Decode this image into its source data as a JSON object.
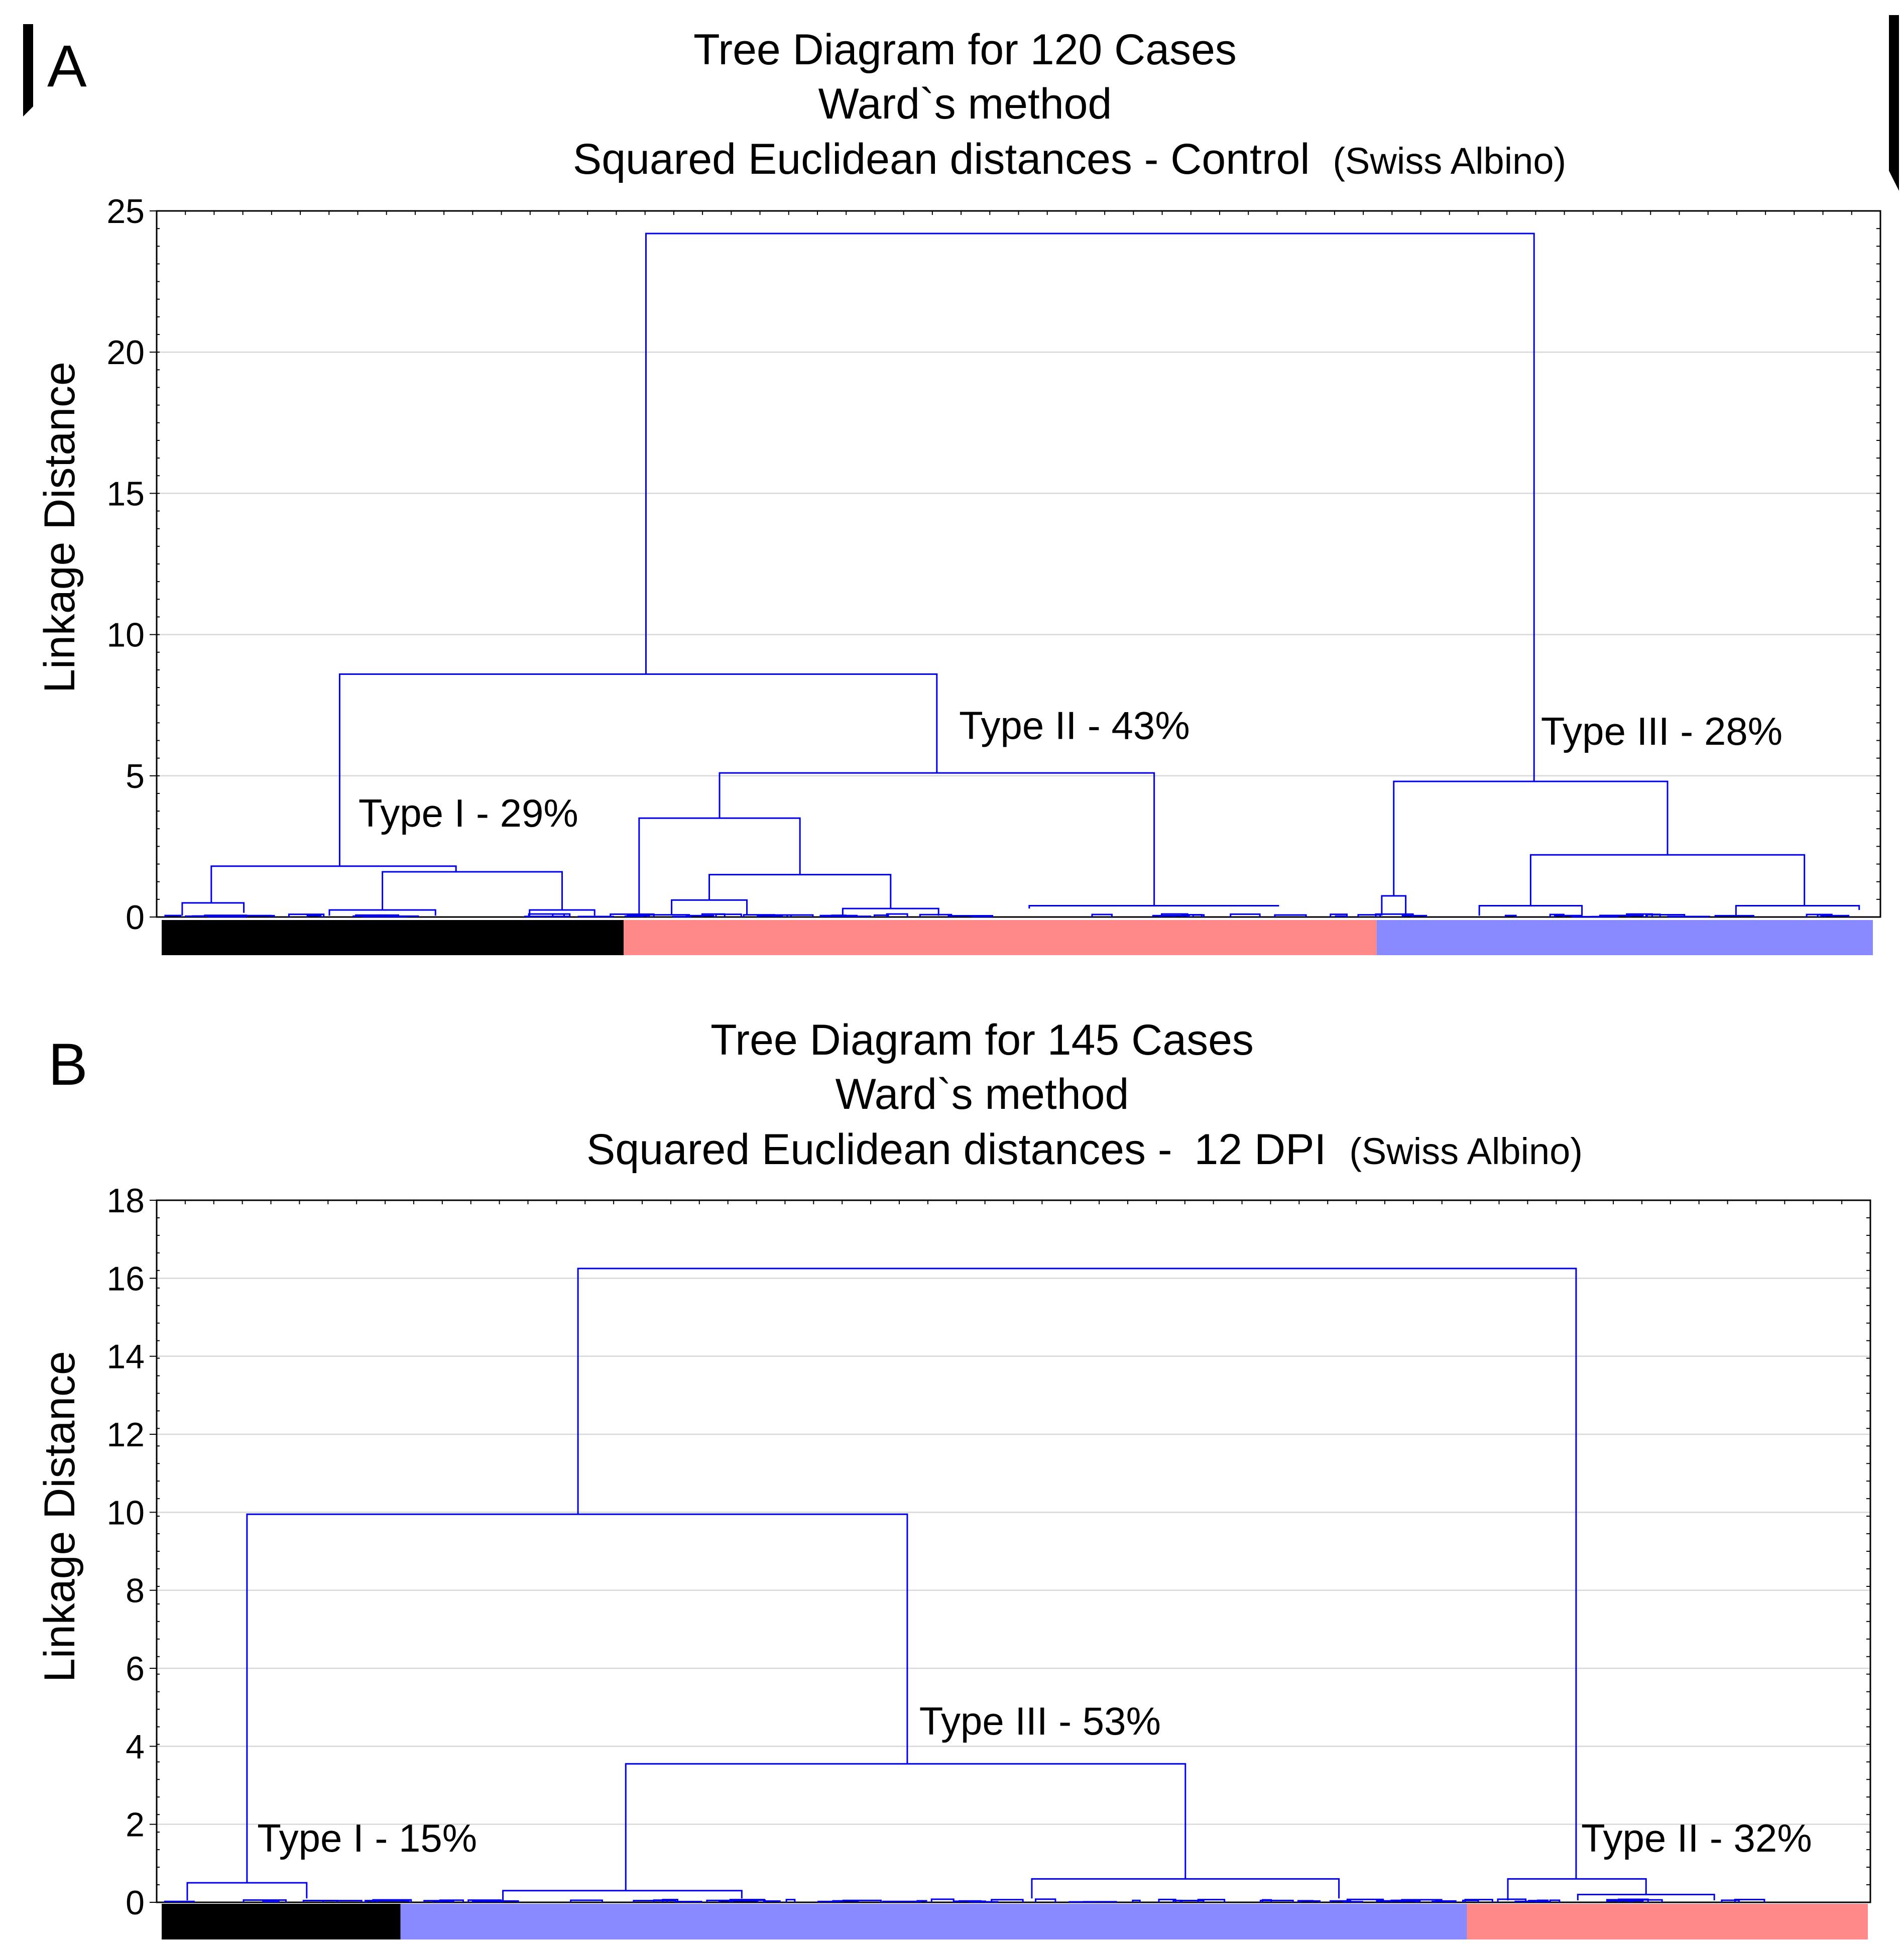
{
  "chart_data": [
    {
      "type": "dendrogram",
      "panel_label": "A",
      "title_lines": [
        "Tree Diagram for 120 Cases",
        "Ward`s method",
        "Squared Euclidean distances - Control"
      ],
      "title_suffix": "(Swiss Albino)",
      "ylabel": "Linkage Distance",
      "ylim": [
        0,
        25
      ],
      "yticks": [
        0,
        5,
        10,
        15,
        20,
        25
      ],
      "grid": true,
      "x_range": [
        0,
        100
      ],
      "colors": {
        "line": "#0000ee",
        "black": "#000000",
        "pink": "#ff8888",
        "blue": "#8888ff"
      },
      "cluster_bar": [
        {
          "cluster": "Type I",
          "color": "#000000",
          "start": 0,
          "end": 27
        },
        {
          "cluster": "Type II",
          "color": "#ff8888",
          "start": 27,
          "end": 71
        },
        {
          "cluster": "Type III",
          "color": "#8888ff",
          "start": 71,
          "end": 100
        }
      ],
      "annotations": [
        {
          "text": "Type I - 29%",
          "x": 11.5,
          "y": 3.2
        },
        {
          "text": "Type II - 43%",
          "x": 46.6,
          "y": 6.3
        },
        {
          "text": "Type III - 28%",
          "x": 80.6,
          "y": 6.1
        }
      ],
      "merges": [
        {
          "x1": 28.3,
          "h1": 8.6,
          "x2": 80.2,
          "h2": 4.8,
          "h": 24.2
        },
        {
          "x1": 10.4,
          "h1": 1.8,
          "x2": 45.3,
          "h2": 5.1,
          "h": 8.6
        },
        {
          "x1": 2.9,
          "h1": 0.5,
          "x2": 17.2,
          "h2": 1.6,
          "h": 1.8
        },
        {
          "x1": 12.9,
          "h1": 0.25,
          "x2": 23.4,
          "h2": 0.25,
          "h": 1.6
        },
        {
          "x1": 1.2,
          "h1": 0.05,
          "x2": 4.8,
          "h2": 0.15,
          "h": 0.5
        },
        {
          "x1": 9.8,
          "h1": 0.05,
          "x2": 16.0,
          "h2": 0.05,
          "h": 0.25
        },
        {
          "x1": 21.5,
          "h1": 0.05,
          "x2": 25.3,
          "h2": 0.05,
          "h": 0.25
        },
        {
          "x1": 32.6,
          "h1": 3.5,
          "x2": 58.0,
          "h2": 0.4,
          "h": 5.1
        },
        {
          "x1": 27.9,
          "h1": 0.1,
          "x2": 37.3,
          "h2": 1.5,
          "h": 3.5
        },
        {
          "x1": 32.0,
          "h1": 0.6,
          "x2": 42.6,
          "h2": 0.3,
          "h": 1.5
        },
        {
          "x1": 29.8,
          "h1": 0.1,
          "x2": 34.2,
          "h2": 0.1,
          "h": 0.6
        },
        {
          "x1": 39.8,
          "h1": 0.05,
          "x2": 45.4,
          "h2": 0.05,
          "h": 0.3
        },
        {
          "x1": 50.7,
          "h1": 0.3,
          "x2": 65.3,
          "h2": 0.4,
          "h": 0.4
        },
        {
          "x1": 72.0,
          "h1": 0.75,
          "x2": 88.0,
          "h2": 2.2,
          "h": 4.8
        },
        {
          "x1": 71.3,
          "h1": 0.05,
          "x2": 72.7,
          "h2": 0.05,
          "h": 0.75
        },
        {
          "x1": 80.0,
          "h1": 0.4,
          "x2": 96.0,
          "h2": 0.4,
          "h": 2.2
        },
        {
          "x1": 77.0,
          "h1": 0.05,
          "x2": 83.0,
          "h2": 0.05,
          "h": 0.4
        },
        {
          "x1": 92.0,
          "h1": 0.05,
          "x2": 99.2,
          "h2": 0.25,
          "h": 0.4
        }
      ]
    },
    {
      "type": "dendrogram",
      "panel_label": "B",
      "title_lines": [
        "Tree Diagram for 145 Cases",
        "Ward`s method",
        "Squared Euclidean distances -"
      ],
      "title_tail": "12 DPI",
      "title_suffix": "(Swiss Albino)",
      "ylabel": "Linkage Distance",
      "ylim": [
        0,
        18
      ],
      "yticks": [
        0,
        2,
        4,
        6,
        8,
        10,
        12,
        14,
        16,
        18
      ],
      "grid": true,
      "x_range": [
        0,
        100
      ],
      "colors": {
        "line": "#0000ee",
        "black": "#000000",
        "pink": "#ff8888",
        "blue": "#8888ff"
      },
      "cluster_bar": [
        {
          "cluster": "Type I",
          "color": "#000000",
          "start": 0,
          "end": 14
        },
        {
          "cluster": "Type III",
          "color": "#8888ff",
          "start": 14,
          "end": 76.5
        },
        {
          "cluster": "Type II",
          "color": "#ff8888",
          "start": 76.5,
          "end": 100
        }
      ],
      "annotations": [
        {
          "text": "Type I - 15%",
          "x": 5.6,
          "y": 1.3
        },
        {
          "text": "Type III - 53%",
          "x": 44.4,
          "y": 4.3
        },
        {
          "text": "Type II - 32%",
          "x": 83.2,
          "y": 1.3
        }
      ],
      "merges": [
        {
          "x1": 5.0,
          "h1": 0.5,
          "x2": 43.7,
          "h2": 3.55,
          "h": 9.95
        },
        {
          "x1": 24.4,
          "h1": 9.95,
          "x2": 82.9,
          "h2": 0.6,
          "h": 16.25
        },
        {
          "x1": 1.5,
          "h1": 0.05,
          "x2": 8.5,
          "h2": 0.1,
          "h": 0.5
        },
        {
          "x1": 27.2,
          "h1": 0.3,
          "x2": 60.0,
          "h2": 0.6,
          "h": 3.55
        },
        {
          "x1": 20.0,
          "h1": 0.05,
          "x2": 34.0,
          "h2": 0.1,
          "h": 0.3
        },
        {
          "x1": 51.0,
          "h1": 0.1,
          "x2": 69.0,
          "h2": 0.1,
          "h": 0.6
        },
        {
          "x1": 78.9,
          "h1": 0.05,
          "x2": 87.0,
          "h2": 0.2,
          "h": 0.6
        },
        {
          "x1": 83.0,
          "h1": 0.05,
          "x2": 91.0,
          "h2": 0.05,
          "h": 0.2
        }
      ]
    }
  ]
}
